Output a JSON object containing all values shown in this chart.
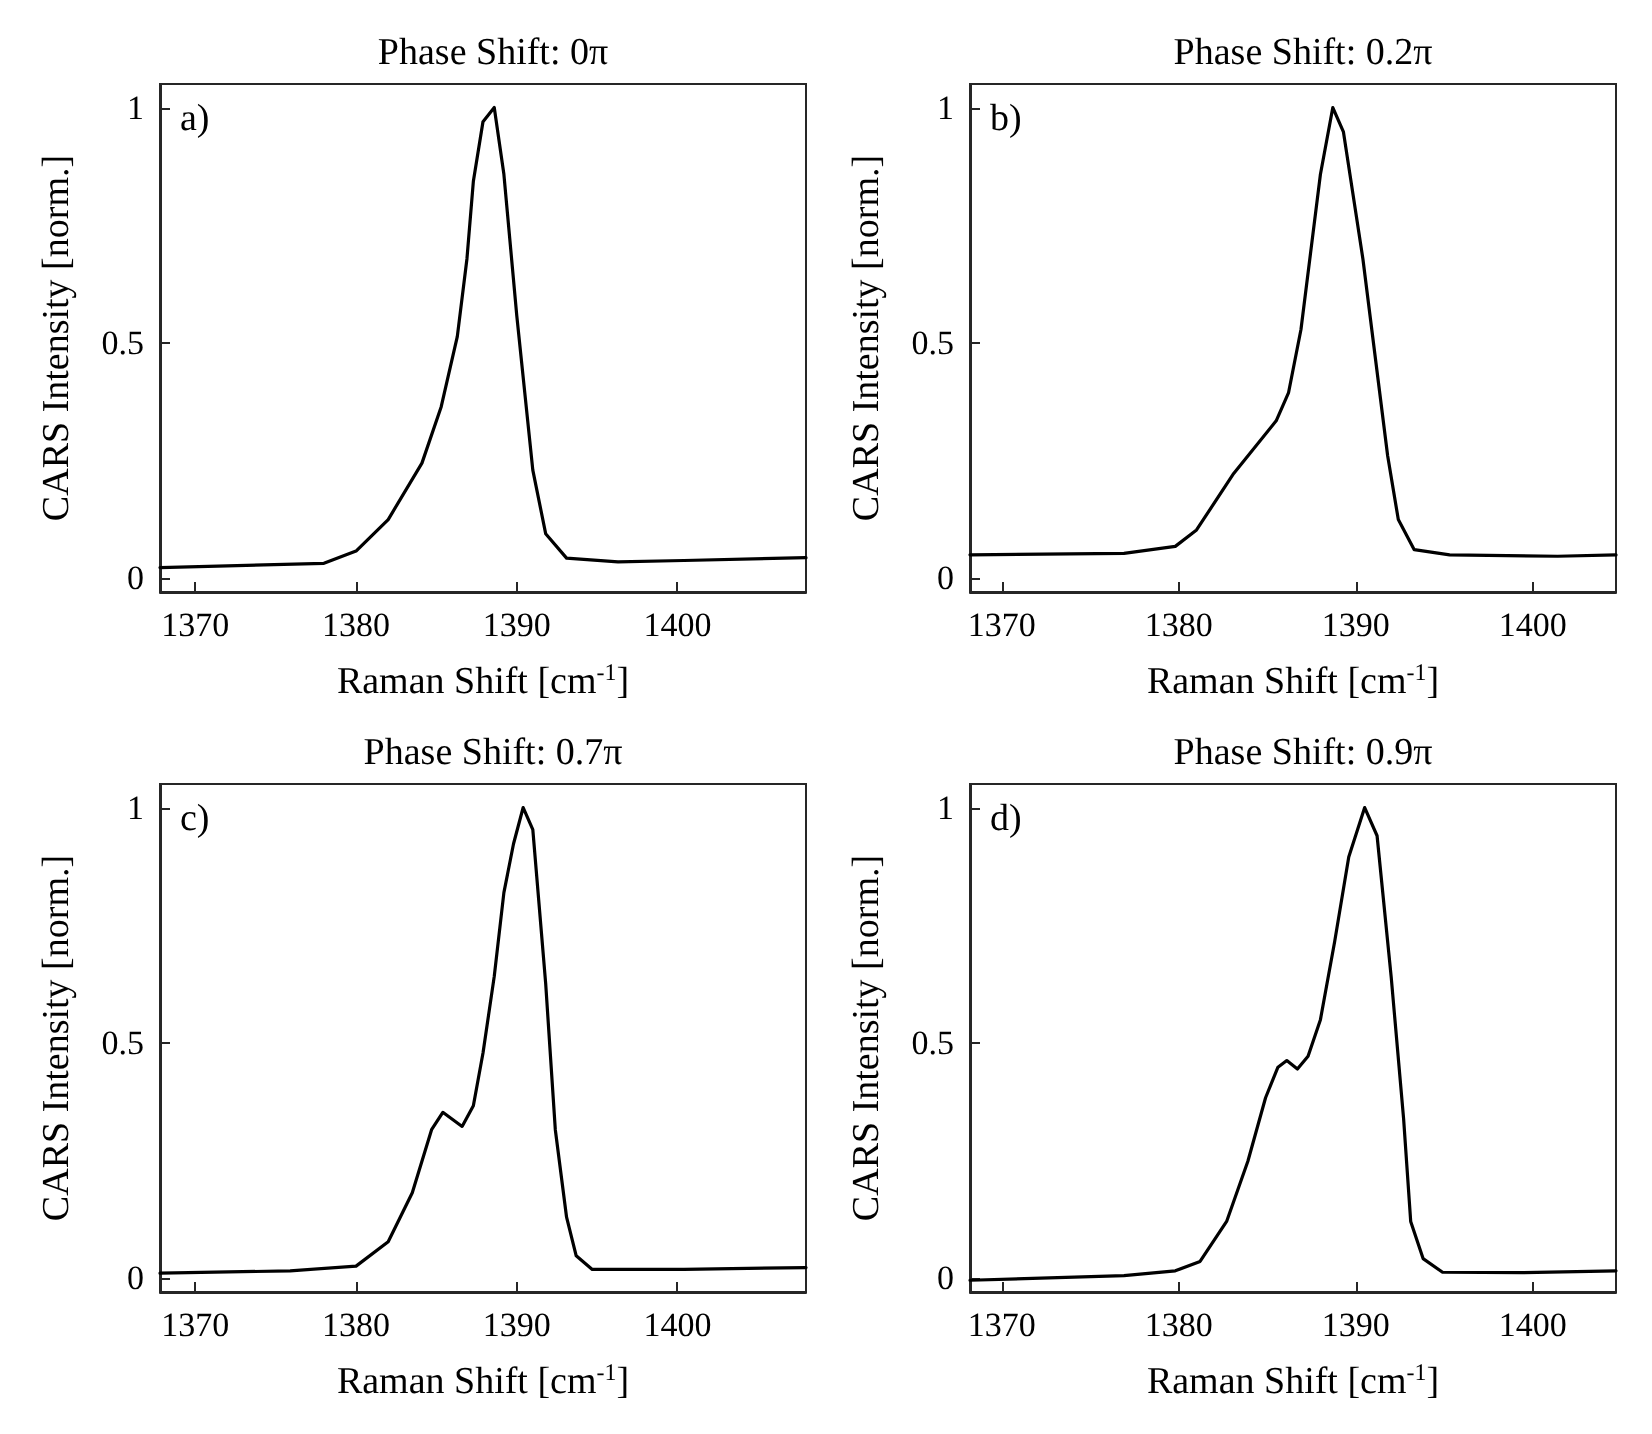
{
  "chart_data": [
    {
      "type": "line",
      "title": "Phase Shift: 0π",
      "xlabel": "Raman Shift [cm$^{-1}$]",
      "ylabel": "CARS Intensity [norm.]",
      "annotations": [
        "a)"
      ],
      "grid": false,
      "xlim": [
        1367.8,
        1408
      ],
      "ylim": [
        -0.03,
        1.05
      ],
      "xticks": [
        1370,
        1380,
        1390,
        1400
      ],
      "yticks": [
        0,
        0.5,
        1
      ],
      "series": [
        {
          "color": "#000000",
          "x": [
            1367.8,
            1378.0,
            1380.0,
            1382.0,
            1384.1,
            1385.3,
            1386.3,
            1386.9,
            1387.3,
            1387.9,
            1388.6,
            1389.2,
            1390.0,
            1391.0,
            1391.8,
            1393.1,
            1396.3,
            1400.4,
            1408
          ],
          "values": [
            0.022,
            0.031,
            0.057,
            0.124,
            0.244,
            0.364,
            0.513,
            0.678,
            0.843,
            0.97,
            1.0,
            0.858,
            0.558,
            0.229,
            0.094,
            0.042,
            0.034,
            0.037,
            0.043
          ]
        }
      ]
    },
    {
      "type": "line",
      "title": "Phase Shift: 0.2π",
      "xlabel": "Raman Shift [cm$^{-1}$]",
      "ylabel": "CARS Intensity [norm.]",
      "annotations": [
        "b)"
      ],
      "grid": false,
      "xlim": [
        1368.2,
        1404.7
      ],
      "ylim": [
        -0.03,
        1.05
      ],
      "xticks": [
        1370,
        1380,
        1390,
        1400
      ],
      "yticks": [
        0,
        0.5,
        1
      ],
      "series": [
        {
          "color": "#000000",
          "x": [
            1368.2,
            1376.9,
            1379.8,
            1381.0,
            1383.1,
            1385.5,
            1386.2,
            1386.9,
            1388.0,
            1388.7,
            1389.3,
            1390.4,
            1391.8,
            1392.4,
            1393.3,
            1395.3,
            1401.4,
            1404.7
          ],
          "values": [
            0.049,
            0.052,
            0.067,
            0.102,
            0.222,
            0.334,
            0.394,
            0.528,
            0.858,
            1.0,
            0.948,
            0.678,
            0.259,
            0.124,
            0.06,
            0.049,
            0.046,
            0.049
          ]
        }
      ]
    },
    {
      "type": "line",
      "title": "Phase Shift: 0.7π",
      "xlabel": "Raman Shift [cm$^{-1}$]",
      "ylabel": "CARS Intensity [norm.]",
      "annotations": [
        "c)"
      ],
      "grid": false,
      "xlim": [
        1367.8,
        1408
      ],
      "ylim": [
        -0.03,
        1.05
      ],
      "xticks": [
        1370,
        1380,
        1390,
        1400
      ],
      "yticks": [
        0,
        0.5,
        1
      ],
      "series": [
        {
          "color": "#000000",
          "x": [
            1367.8,
            1375.9,
            1380.0,
            1382.0,
            1383.5,
            1384.7,
            1385.4,
            1386.6,
            1387.3,
            1387.9,
            1388.6,
            1389.2,
            1389.8,
            1390.4,
            1391.0,
            1391.8,
            1392.4,
            1393.1,
            1393.7,
            1394.7,
            1400.4,
            1408
          ],
          "values": [
            0.01,
            0.015,
            0.025,
            0.077,
            0.181,
            0.315,
            0.352,
            0.322,
            0.366,
            0.478,
            0.641,
            0.819,
            0.923,
            1.0,
            0.953,
            0.626,
            0.315,
            0.129,
            0.047,
            0.018,
            0.018,
            0.022
          ]
        }
      ]
    },
    {
      "type": "line",
      "title": "Phase Shift: 0.9π",
      "xlabel": "Raman Shift [cm$^{-1}$]",
      "ylabel": "CARS Intensity [norm.]",
      "annotations": [
        "d)"
      ],
      "grid": false,
      "xlim": [
        1368.2,
        1404.7
      ],
      "ylim": [
        -0.03,
        1.05
      ],
      "xticks": [
        1370,
        1380,
        1390,
        1400
      ],
      "yticks": [
        0,
        0.5,
        1
      ],
      "series": [
        {
          "color": "#000000",
          "x": [
            1368.2,
            1376.9,
            1379.8,
            1381.2,
            1382.7,
            1383.9,
            1384.9,
            1385.6,
            1386.1,
            1386.7,
            1387.3,
            1388.0,
            1388.8,
            1389.6,
            1390.5,
            1391.2,
            1392.0,
            1392.7,
            1393.1,
            1393.8,
            1394.9,
            1399.4,
            1404.7
          ],
          "values": [
            -0.005,
            0.005,
            0.015,
            0.035,
            0.12,
            0.248,
            0.383,
            0.448,
            0.462,
            0.444,
            0.471,
            0.549,
            0.714,
            0.895,
            1.0,
            0.94,
            0.639,
            0.338,
            0.12,
            0.041,
            0.012,
            0.011,
            0.015
          ]
        }
      ]
    }
  ]
}
